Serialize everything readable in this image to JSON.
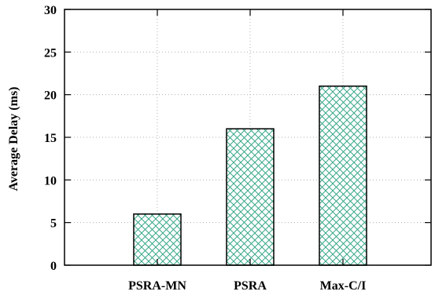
{
  "chart_data": {
    "type": "bar",
    "title": "",
    "xlabel": "",
    "ylabel": "Average Delay (ms)",
    "ylim": [
      0,
      30
    ],
    "yticks": [
      0,
      5,
      10,
      15,
      20,
      25,
      30
    ],
    "categories": [
      "PSRA-MN",
      "PSRA",
      "Max-C/I"
    ],
    "values": [
      6,
      16,
      21
    ],
    "grid": true,
    "bar_pattern": "crosshatch",
    "bar_color": "#3aa88a",
    "bar_outline": "#000000"
  }
}
